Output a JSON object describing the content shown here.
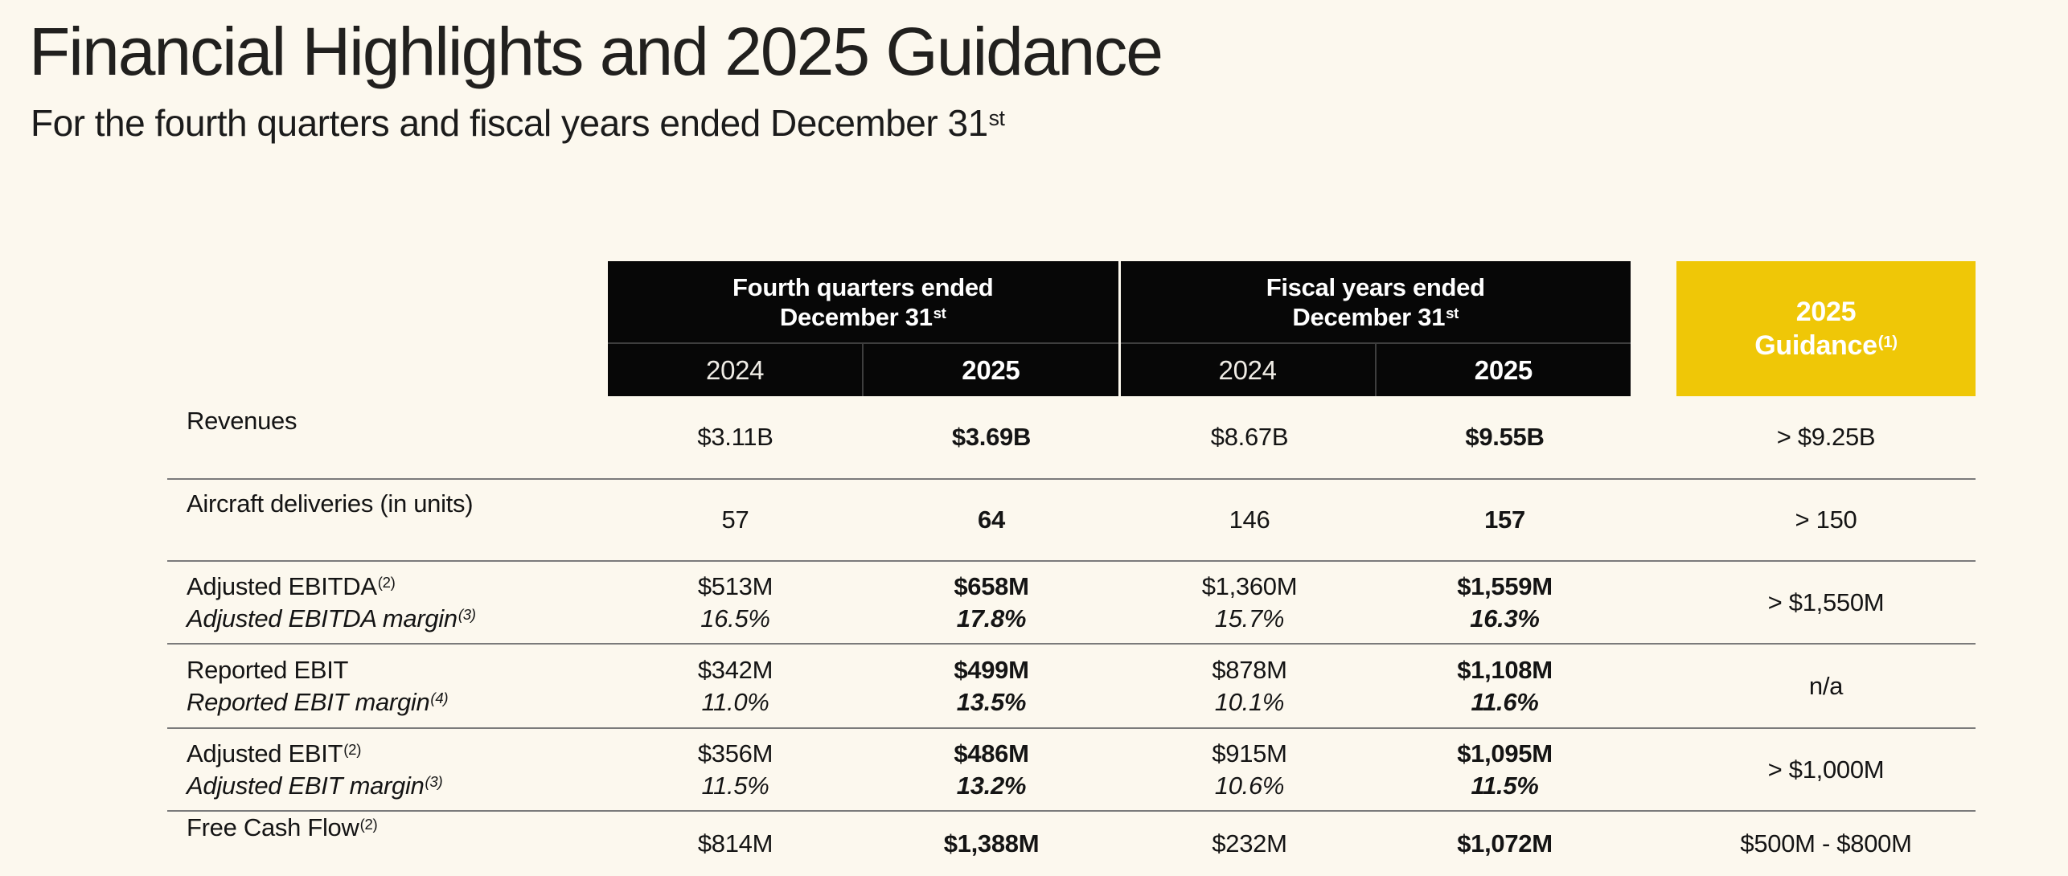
{
  "header": {
    "title": "Financial Highlights and 2025 Guidance",
    "subtitle": "For the fourth quarters and fiscal years ended December 31",
    "subtitle_sup": "st"
  },
  "table": {
    "groups": [
      {
        "line1": "Fourth quarters ended",
        "line2": "December 31",
        "line2_sup": "st",
        "years": [
          "2024",
          "2025"
        ]
      },
      {
        "line1": "Fiscal years ended",
        "line2": "December 31",
        "line2_sup": "st",
        "years": [
          "2024",
          "2025"
        ]
      }
    ],
    "guidance_header": {
      "line1": "2025",
      "line2": "Guidance",
      "line2_sup": "(1)"
    },
    "rows": [
      {
        "label": "Revenues",
        "c1": "$3.11B",
        "c2": "$3.69B",
        "c3": "$8.67B",
        "c4": "$9.55B",
        "guidance": "> $9.25B"
      },
      {
        "label": "Aircraft deliveries (in units)",
        "c1": "57",
        "c2": "64",
        "c3": "146",
        "c4": "157",
        "guidance": "> 150"
      },
      {
        "label": "Adjusted EBITDA",
        "label_sup": "(2)",
        "sub_label": "Adjusted EBITDA margin",
        "sub_label_sup": "(3)",
        "c1": "$513M",
        "c1_sub": "16.5%",
        "c2": "$658M",
        "c2_sub": "17.8%",
        "c3": "$1,360M",
        "c3_sub": "15.7%",
        "c4": "$1,559M",
        "c4_sub": "16.3%",
        "guidance": "> $1,550M"
      },
      {
        "label": "Reported EBIT",
        "sub_label": "Reported EBIT margin",
        "sub_label_sup": "(4)",
        "c1": "$342M",
        "c1_sub": "11.0%",
        "c2": "$499M",
        "c2_sub": "13.5%",
        "c3": "$878M",
        "c3_sub": "10.1%",
        "c4": "$1,108M",
        "c4_sub": "11.6%",
        "guidance": "n/a"
      },
      {
        "label": "Adjusted EBIT",
        "label_sup": "(2)",
        "sub_label": "Adjusted EBIT margin",
        "sub_label_sup": "(3)",
        "c1": "$356M",
        "c1_sub": "11.5%",
        "c2": "$486M",
        "c2_sub": "13.2%",
        "c3": "$915M",
        "c3_sub": "10.6%",
        "c4": "$1,095M",
        "c4_sub": "11.5%",
        "guidance": "> $1,000M"
      },
      {
        "label": "Free Cash Flow",
        "label_sup": "(2)",
        "c1": "$814M",
        "c2": "$1,388M",
        "c3": "$232M",
        "c4": "$1,072M",
        "guidance": "$500M - $800M"
      }
    ]
  },
  "colors": {
    "background": "#FCF8EE",
    "header_black": "#070707",
    "accent_yellow": "#EFC707",
    "row_divider": "#7B7B7B",
    "text": "#141414"
  }
}
